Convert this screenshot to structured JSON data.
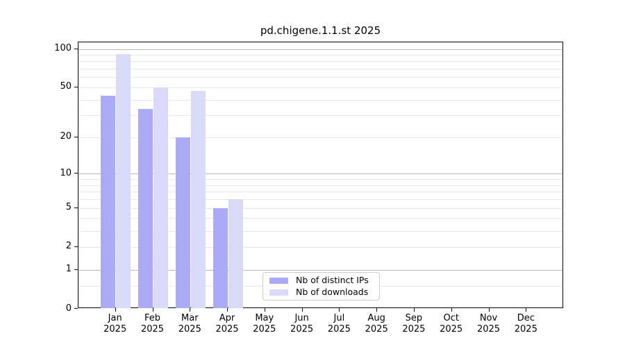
{
  "title": "pd.chigene.1.1.st 2025",
  "colors": {
    "bar_distinct_ips": "#aaaaf6",
    "bar_downloads": "#d9d9f9",
    "axis": "#000000",
    "grid_major": "#b9b9b9",
    "grid_minor": "#e9e9e9",
    "legend_border": "#cccccc",
    "background": "#ffffff"
  },
  "legend": {
    "items": [
      {
        "label": "Nb of distinct IPs",
        "swatch": "bar_distinct_ips"
      },
      {
        "label": "Nb of downloads",
        "swatch": "bar_downloads"
      }
    ]
  },
  "chart_data": {
    "type": "bar",
    "title": "pd.chigene.1.1.st 2025",
    "categories": [
      "Jan",
      "Feb",
      "Mar",
      "Apr",
      "May",
      "Jun",
      "Jul",
      "Aug",
      "Sep",
      "Oct",
      "Nov",
      "Dec"
    ],
    "year_label": "2025",
    "series": [
      {
        "name": "Nb of distinct IPs",
        "color": "#aaaaf6",
        "values": [
          43,
          34,
          20,
          5,
          null,
          null,
          null,
          null,
          null,
          null,
          null,
          null
        ]
      },
      {
        "name": "Nb of downloads",
        "color": "#d9d9f9",
        "values": [
          91,
          50,
          47,
          6,
          null,
          null,
          null,
          null,
          null,
          null,
          null,
          null
        ]
      }
    ],
    "xlabel": "",
    "ylabel": "",
    "y_ticks": [
      0,
      1,
      2,
      5,
      10,
      20,
      50,
      100
    ],
    "y_minor_gridlines": [
      0.5,
      2,
      3,
      4,
      5,
      6,
      7,
      8,
      9,
      20,
      30,
      40,
      50,
      60,
      70,
      80,
      90
    ],
    "y_major_gridlines": [
      1,
      10,
      100
    ],
    "scale": "log10(value+1)",
    "ylim": [
      0,
      110
    ],
    "grid": "both",
    "legend_position": "lower-center"
  }
}
